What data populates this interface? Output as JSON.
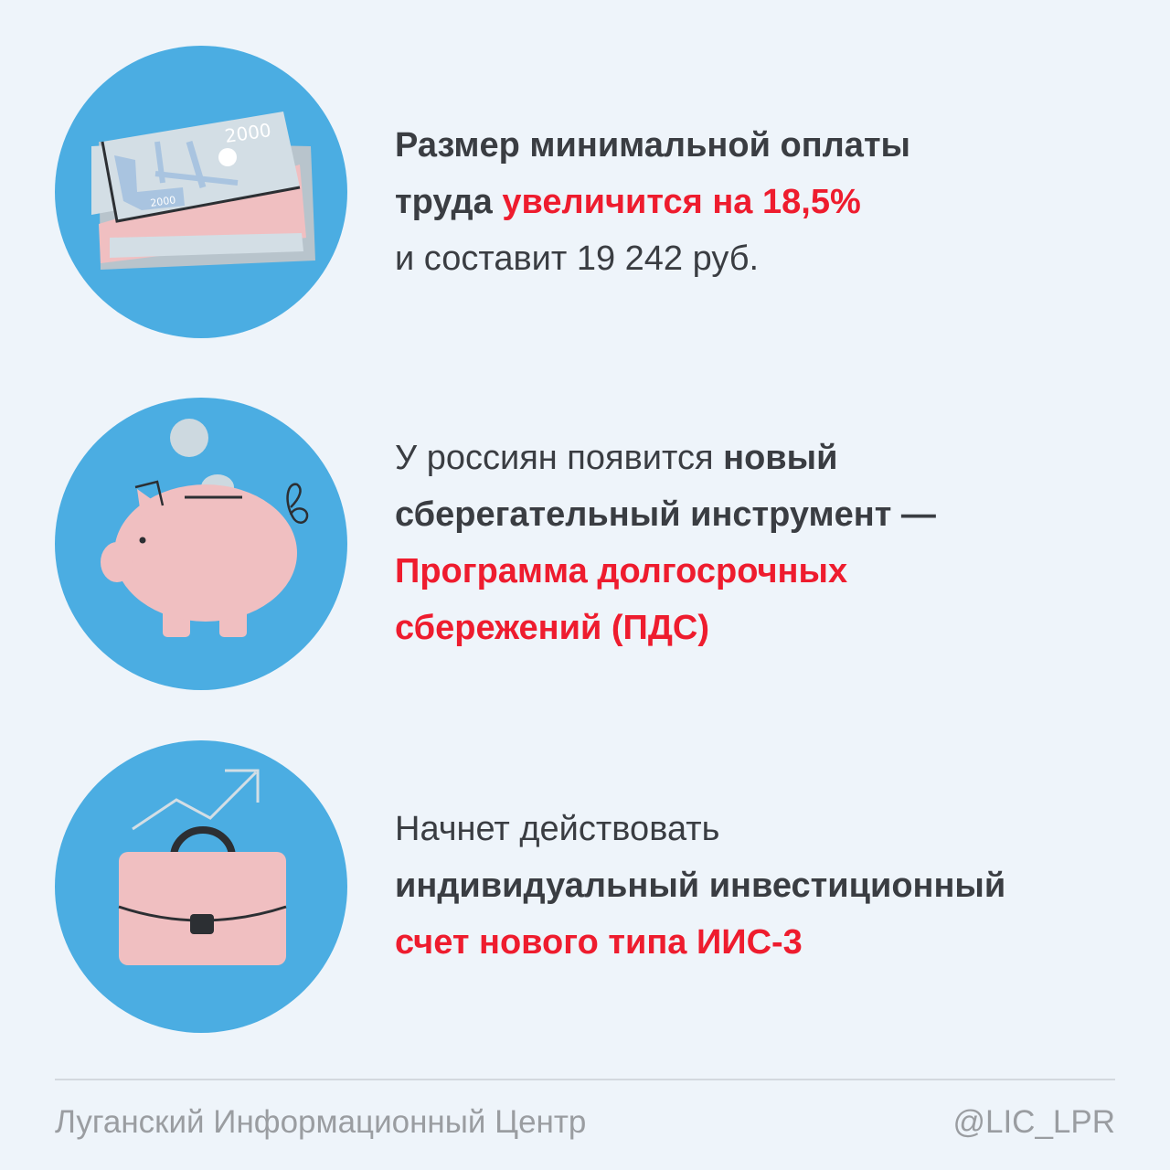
{
  "colors": {
    "background": "#eef4fa",
    "circle": "#4bade2",
    "accent_red": "#ee1c2e",
    "pink": "#f0bfc1",
    "text": "#3a3d42"
  },
  "items": [
    {
      "icon": "banknotes-icon",
      "banknote_label": "2000",
      "line1": "Размер минимальной оплаты",
      "line2_bold": "труда ",
      "line2_red": "увеличится на 18,5%",
      "line3": "и составит 19 242 руб."
    },
    {
      "icon": "piggy-bank-icon",
      "line1_regular": "У россиян появится ",
      "line1_bold": "новый",
      "line2_bold": "сберегательный инструмент —",
      "line3_red": "Программа долгосрочных",
      "line4_red": "сбережений (ПДС)"
    },
    {
      "icon": "briefcase-growth-icon",
      "line1": "Начнет действовать",
      "line2_bold": "индивидуальный инвестиционный",
      "line3_red": "счет нового типа ИИС-3"
    }
  ],
  "footer": {
    "source": "Луганский Информационный Центр",
    "handle": "@LIC_LPR"
  }
}
